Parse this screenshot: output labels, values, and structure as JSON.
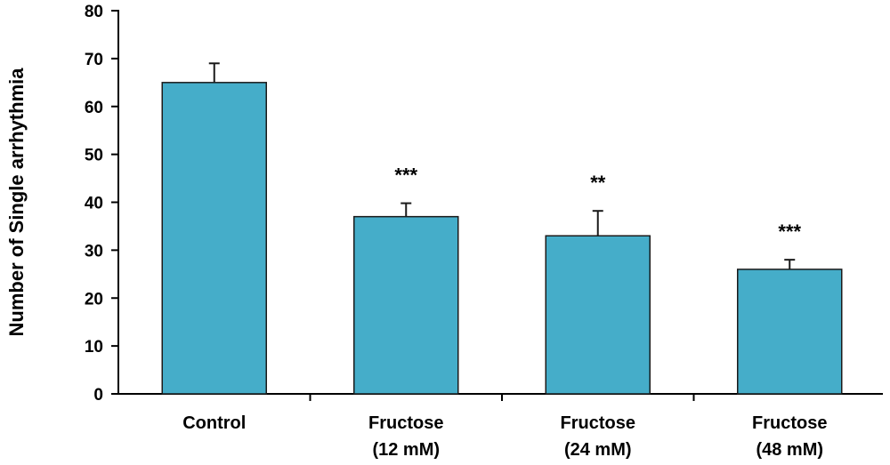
{
  "chart_data": {
    "type": "bar",
    "title": "",
    "xlabel": "",
    "ylabel": "Number of Single arrhythmia",
    "ylim": [
      0,
      80
    ],
    "yticks": [
      0,
      10,
      20,
      30,
      40,
      50,
      60,
      70,
      80
    ],
    "grid": false,
    "categories": [
      {
        "lines": [
          "Control"
        ]
      },
      {
        "lines": [
          "Fructose",
          "(12 mM)"
        ]
      },
      {
        "lines": [
          "Fructose",
          "(24 mM)"
        ]
      },
      {
        "lines": [
          "Fructose",
          "(48 mM)"
        ]
      }
    ],
    "values": [
      65,
      37,
      33,
      26
    ],
    "errors": [
      4,
      2.8,
      5.2,
      2
    ],
    "significance": [
      "",
      "***",
      "**",
      "***"
    ],
    "bar_color": "#45ADC9",
    "bar_edge_color": "#1a1a1a"
  }
}
